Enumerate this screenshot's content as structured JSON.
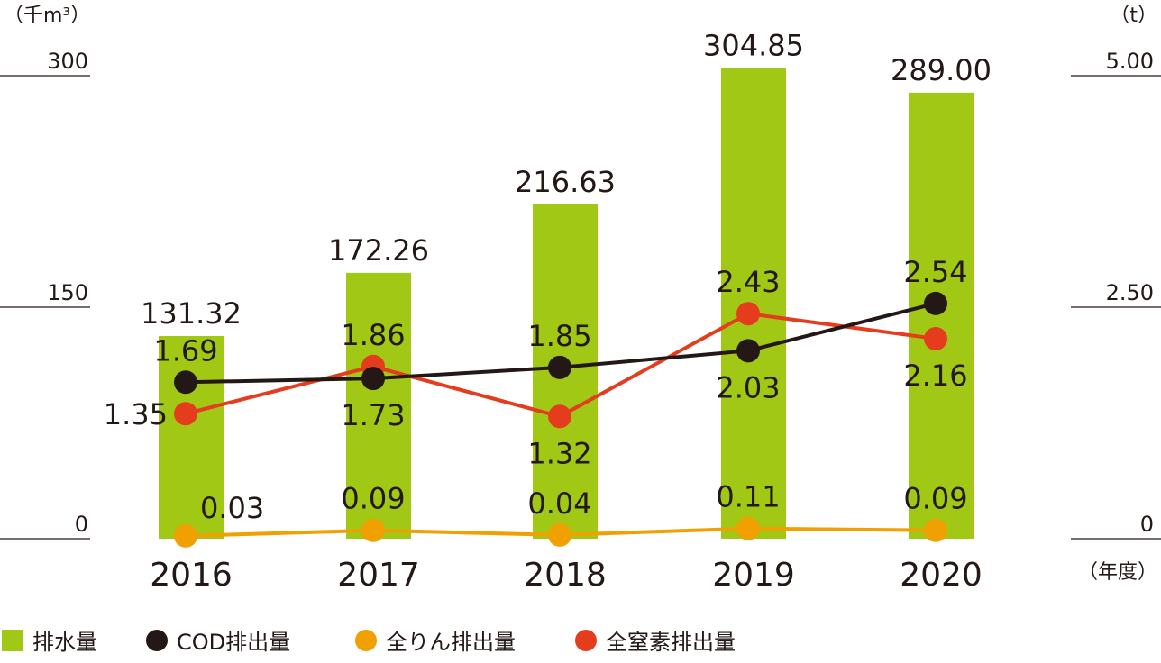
{
  "chart_data": {
    "type": "bar+line",
    "categories": [
      "2016",
      "2017",
      "2018",
      "2019",
      "2020"
    ],
    "x_unit": "（年度）",
    "left_axis": {
      "unit": "（千m³）",
      "ticks": [
        "0",
        "150",
        "300"
      ],
      "range": [
        0,
        300
      ]
    },
    "right_axis": {
      "unit": "（t）",
      "ticks": [
        "0",
        "2.50",
        "5.00"
      ],
      "range": [
        0,
        5
      ]
    },
    "bar_series": {
      "name": "排水量",
      "color": "#a0c814",
      "values": [
        131.32,
        172.26,
        216.63,
        304.85,
        289.0
      ],
      "labels": [
        "131.32",
        "172.26",
        "216.63",
        "304.85",
        "289.00"
      ]
    },
    "line_series": [
      {
        "name": "COD排出量",
        "color": "#231815",
        "values": [
          1.69,
          1.73,
          1.85,
          2.03,
          2.54
        ],
        "labels": [
          "1.69",
          "1.73",
          "1.85",
          "2.03",
          "2.54"
        ],
        "label_pos": [
          "above",
          "below",
          "above",
          "below",
          "above"
        ]
      },
      {
        "name": "全りん排出量",
        "color": "#f0a000",
        "values": [
          0.03,
          0.09,
          0.04,
          0.11,
          0.09
        ],
        "labels": [
          "0.03",
          "0.09",
          "0.04",
          "0.11",
          "0.09"
        ],
        "label_pos": [
          "above-right",
          "above",
          "above",
          "above",
          "above"
        ]
      },
      {
        "name": "全窒素排出量",
        "color": "#e63c1e",
        "values": [
          1.35,
          1.86,
          1.32,
          2.43,
          2.16
        ],
        "labels": [
          "1.35",
          "1.86",
          "1.32",
          "2.43",
          "2.16"
        ],
        "label_pos": [
          "left",
          "above",
          "below",
          "above",
          "below"
        ]
      }
    ],
    "legend": [
      "排水量",
      "COD排出量",
      "全りん排出量",
      "全窒素排出量"
    ]
  }
}
